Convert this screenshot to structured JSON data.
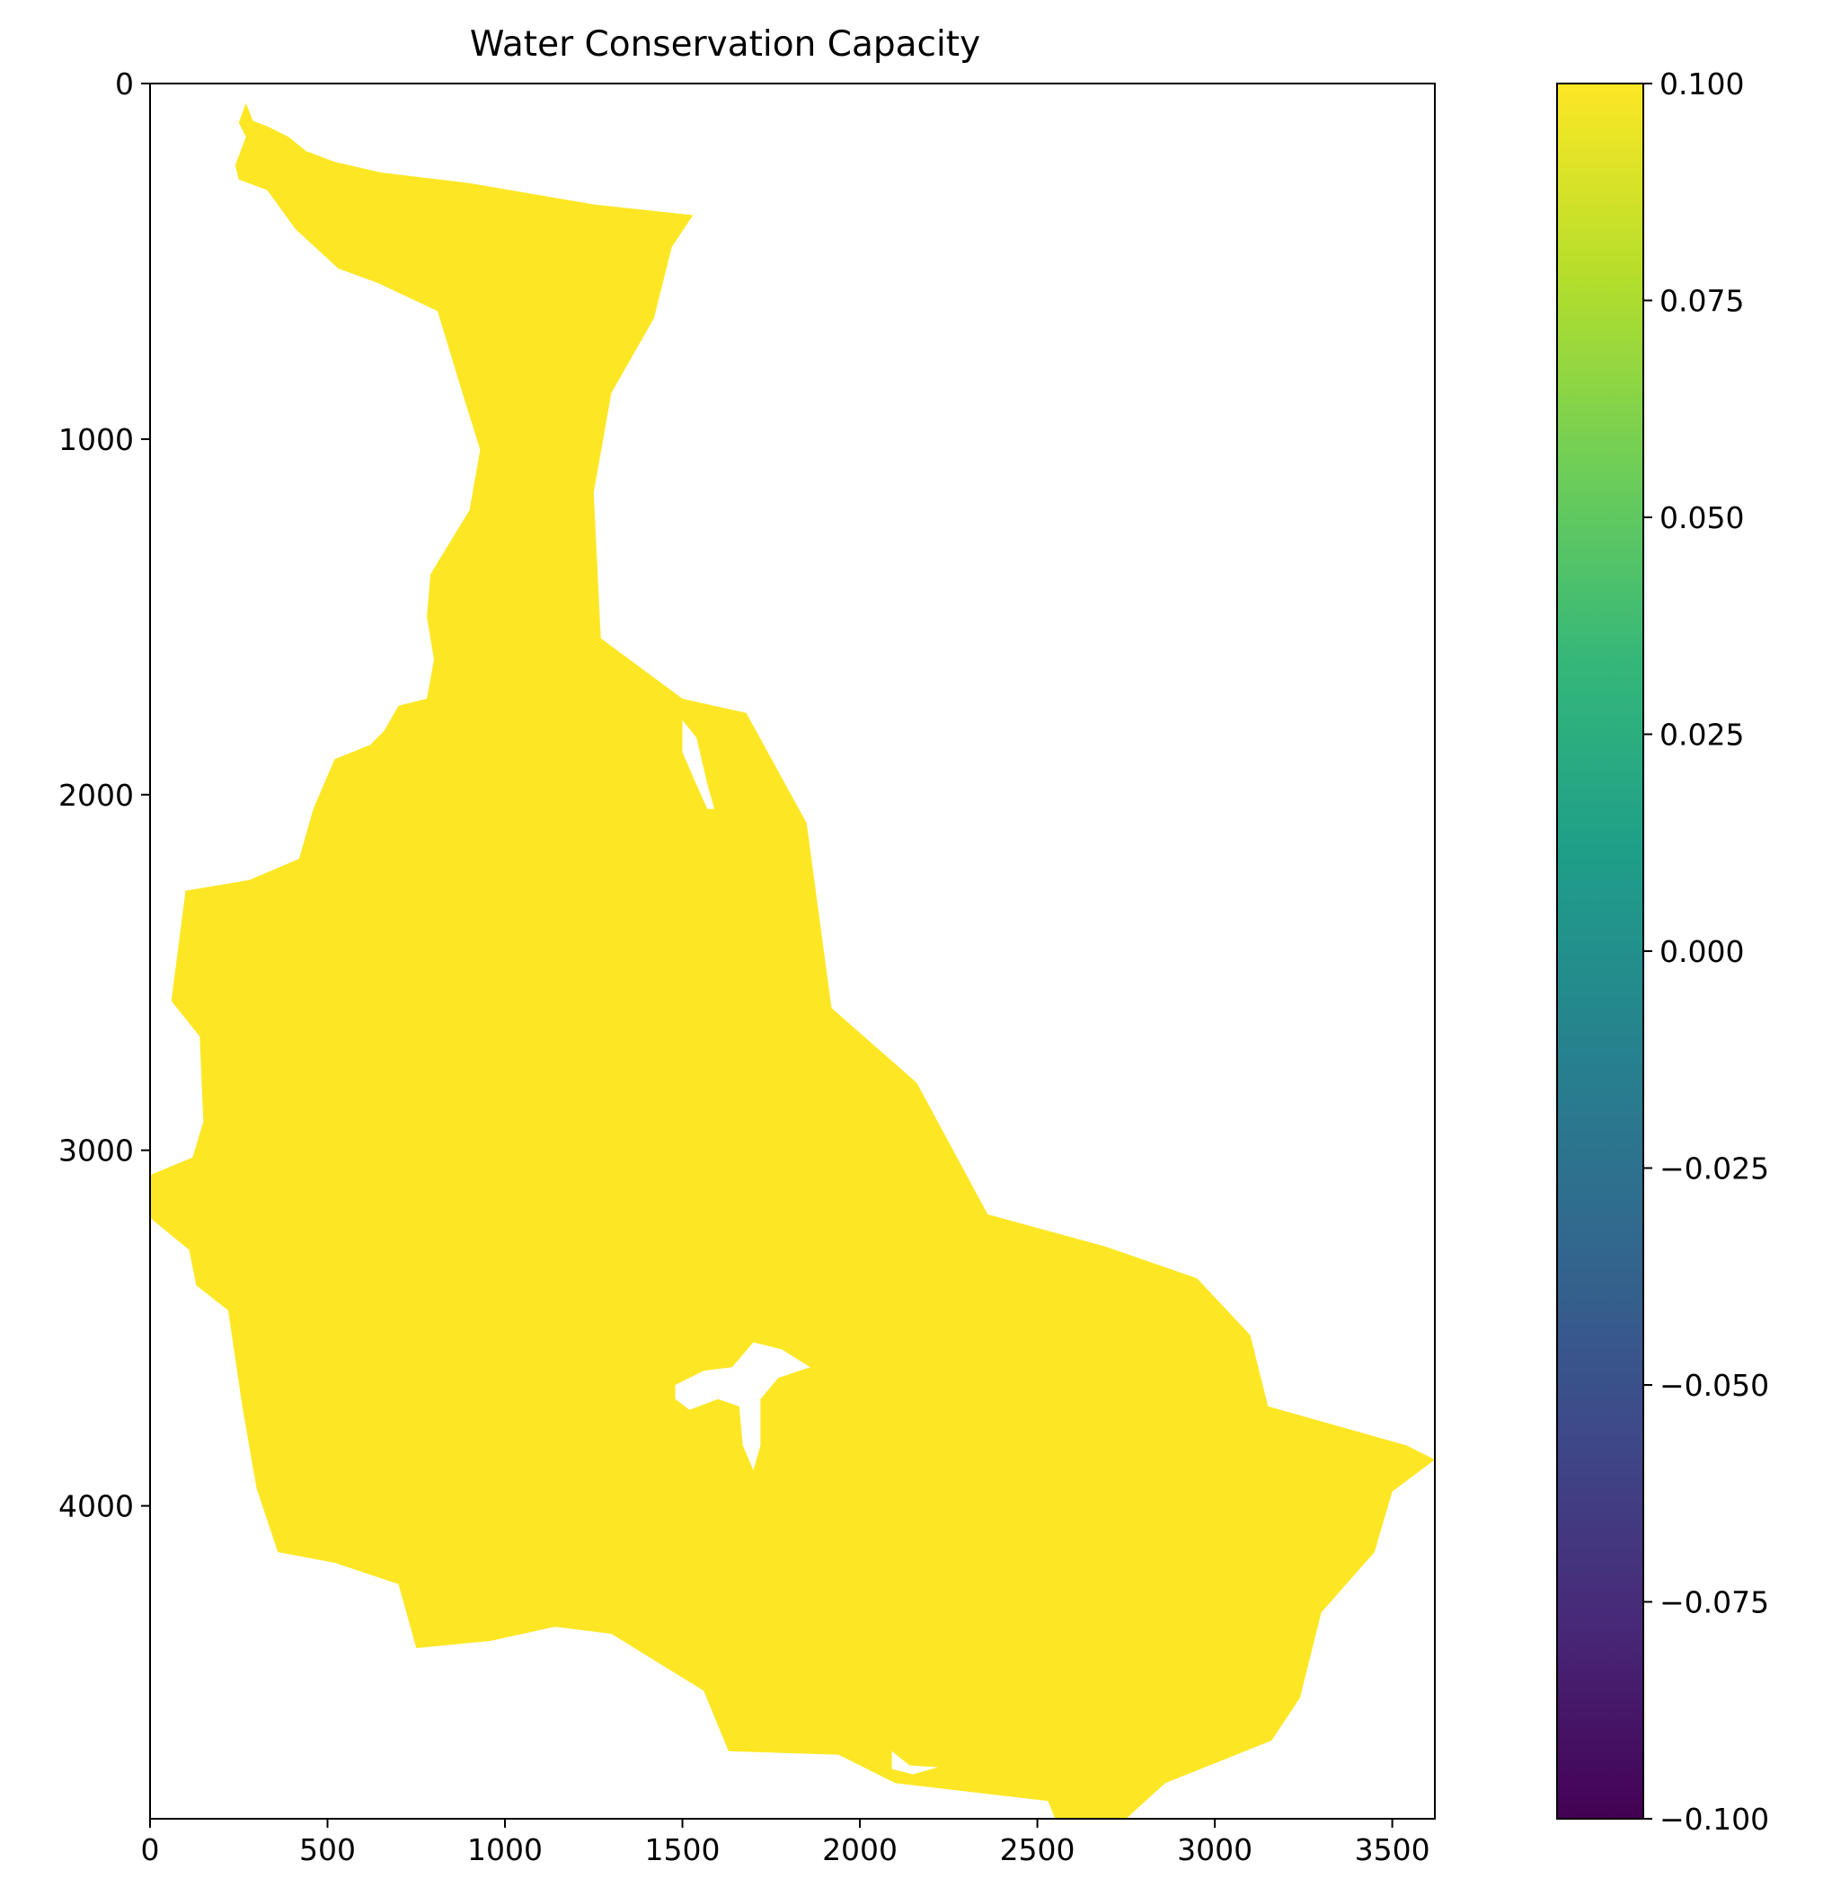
{
  "chart_data": {
    "type": "heatmap",
    "title": "Water Conservation Capacity",
    "xlabel": "",
    "ylabel": "",
    "xlim": [
      0,
      3620
    ],
    "ylim": [
      4880,
      0
    ],
    "x_ticks": [
      0,
      500,
      1000,
      1500,
      2000,
      2500,
      3000,
      3500
    ],
    "y_ticks": [
      0,
      1000,
      2000,
      3000,
      4000
    ],
    "x_tick_labels": [
      "0",
      "500",
      "1000",
      "1500",
      "2000",
      "2500",
      "3000",
      "3500"
    ],
    "y_tick_labels": [
      "0",
      "1000",
      "2000",
      "3000",
      "4000"
    ],
    "grid": false,
    "fill_value": 0.1,
    "fill_color": "#fde725",
    "background_color": "#ffffff",
    "colormap": "viridis",
    "colorbar": {
      "range": [
        -0.1,
        0.1
      ],
      "ticks": [
        0.1,
        0.075,
        0.05,
        0.025,
        0.0,
        -0.025,
        -0.05,
        -0.075,
        -0.1
      ],
      "tick_labels": [
        "0.100",
        "0.075",
        "0.050",
        "0.025",
        "0.000",
        "−0.025",
        "−0.050",
        "−0.075",
        "−0.100"
      ],
      "colors": [
        "#440154",
        "#482878",
        "#3e4989",
        "#31688e",
        "#26828e",
        "#1f9e89",
        "#35b779",
        "#6ece58",
        "#b5de2b",
        "#fde725"
      ]
    },
    "region_outline": [
      [
        270,
        55
      ],
      [
        290,
        105
      ],
      [
        330,
        120
      ],
      [
        390,
        150
      ],
      [
        440,
        190
      ],
      [
        520,
        220
      ],
      [
        650,
        250
      ],
      [
        900,
        280
      ],
      [
        1250,
        340
      ],
      [
        1530,
        370
      ],
      [
        1470,
        460
      ],
      [
        1420,
        660
      ],
      [
        1300,
        870
      ],
      [
        1250,
        1150
      ],
      [
        1270,
        1560
      ],
      [
        1500,
        1730
      ],
      [
        1680,
        1770
      ],
      [
        1850,
        2080
      ],
      [
        1920,
        2600
      ],
      [
        2160,
        2810
      ],
      [
        2360,
        3180
      ],
      [
        2690,
        3270
      ],
      [
        2950,
        3360
      ],
      [
        3100,
        3520
      ],
      [
        3150,
        3720
      ],
      [
        3540,
        3830
      ],
      [
        3620,
        3870
      ],
      [
        3500,
        3960
      ],
      [
        3450,
        4130
      ],
      [
        3300,
        4300
      ],
      [
        3240,
        4540
      ],
      [
        3160,
        4660
      ],
      [
        2860,
        4780
      ],
      [
        2750,
        4880
      ],
      [
        2550,
        4880
      ],
      [
        2530,
        4830
      ],
      [
        2100,
        4780
      ],
      [
        1940,
        4700
      ],
      [
        1630,
        4690
      ],
      [
        1560,
        4520
      ],
      [
        1300,
        4360
      ],
      [
        1140,
        4340
      ],
      [
        960,
        4380
      ],
      [
        750,
        4400
      ],
      [
        700,
        4220
      ],
      [
        520,
        4160
      ],
      [
        360,
        4130
      ],
      [
        300,
        3950
      ],
      [
        260,
        3720
      ],
      [
        220,
        3450
      ],
      [
        130,
        3380
      ],
      [
        110,
        3280
      ],
      [
        0,
        3190
      ],
      [
        0,
        3070
      ],
      [
        120,
        3020
      ],
      [
        150,
        2920
      ],
      [
        140,
        2680
      ],
      [
        60,
        2580
      ],
      [
        100,
        2270
      ],
      [
        280,
        2240
      ],
      [
        420,
        2180
      ],
      [
        460,
        2040
      ],
      [
        520,
        1900
      ],
      [
        620,
        1860
      ],
      [
        660,
        1820
      ],
      [
        700,
        1750
      ],
      [
        780,
        1730
      ],
      [
        800,
        1620
      ],
      [
        780,
        1500
      ],
      [
        790,
        1380
      ],
      [
        900,
        1200
      ],
      [
        930,
        1030
      ],
      [
        880,
        870
      ],
      [
        810,
        640
      ],
      [
        640,
        560
      ],
      [
        530,
        520
      ],
      [
        410,
        410
      ],
      [
        330,
        300
      ],
      [
        250,
        270
      ],
      [
        240,
        230
      ],
      [
        270,
        150
      ],
      [
        250,
        110
      ]
    ],
    "holes": [
      [
        [
          1480,
          3660
        ],
        [
          1560,
          3620
        ],
        [
          1640,
          3610
        ],
        [
          1700,
          3540
        ],
        [
          1780,
          3560
        ],
        [
          1860,
          3610
        ],
        [
          1770,
          3640
        ],
        [
          1720,
          3700
        ],
        [
          1720,
          3830
        ],
        [
          1700,
          3900
        ],
        [
          1670,
          3830
        ],
        [
          1660,
          3720
        ],
        [
          1600,
          3700
        ],
        [
          1520,
          3730
        ],
        [
          1480,
          3700
        ]
      ],
      [
        [
          1500,
          1790
        ],
        [
          1540,
          1840
        ],
        [
          1570,
          1970
        ],
        [
          1590,
          2040
        ],
        [
          1570,
          2040
        ],
        [
          1530,
          1950
        ],
        [
          1500,
          1880
        ]
      ],
      [
        [
          2090,
          4690
        ],
        [
          2140,
          4730
        ],
        [
          2220,
          4735
        ],
        [
          2150,
          4755
        ],
        [
          2090,
          4740
        ]
      ]
    ]
  }
}
